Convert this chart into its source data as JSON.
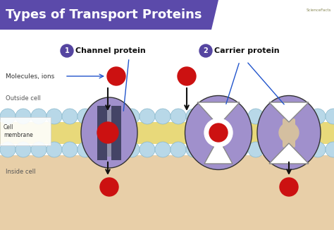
{
  "title": "Types of Transport Proteins",
  "title_bg": "#5b4aaa",
  "title_color": "#ffffff",
  "title_fontsize": 13,
  "bg_color": "#ffffff",
  "label1": "Channel protein",
  "label2": "Carrier protein",
  "label_molecules": "Molecules, ions",
  "label_outside": "Outside cell",
  "label_inside": "Inside cell",
  "label_membrane": "Cell\nmembrane",
  "membrane_yellow": "#e8d97a",
  "membrane_circle_color": "#b8d8e8",
  "membrane_circle_edge": "#88b8cc",
  "protein_color": "#a090cc",
  "protein_edge": "#333333",
  "channel_dark": "#555577",
  "molecule_color": "#cc1111",
  "arrow_color": "#111111",
  "label_line_color": "#2255cc",
  "number_bg": "#5545a0",
  "fig_bg": "#ffffff",
  "inside_bg": "#e8cfa8",
  "outside_bg": "#ffffff",
  "membrane_bg": "#e8cfa8"
}
